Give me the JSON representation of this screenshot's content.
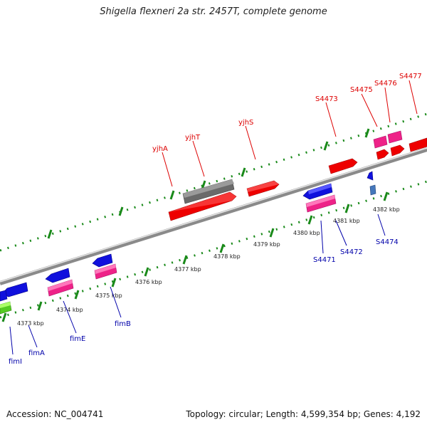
{
  "title": "Shigella flexneri 2a str. 2457T, complete genome",
  "accession_text": "Accession: NC_004741",
  "summary_text": "Topology: circular; Length: 4,599,354 bp; Genes: 4,192",
  "colors": {
    "forward_gene_label": "#dd0000",
    "reverse_gene_label": "#0000aa",
    "backbone": "#999999",
    "tick": "#1a8a1a"
  },
  "ticks": [
    {
      "label": "4373 kbp",
      "pos": 4373
    },
    {
      "label": "4374 kbp",
      "pos": 4374
    },
    {
      "label": "4375 kbp",
      "pos": 4375
    },
    {
      "label": "4376 kbp",
      "pos": 4376
    },
    {
      "label": "4377 kbp",
      "pos": 4377
    },
    {
      "label": "4378 kbp",
      "pos": 4378
    },
    {
      "label": "4379 kbp",
      "pos": 4379
    },
    {
      "label": "4380 kbp",
      "pos": 4380
    },
    {
      "label": "4381 kbp",
      "pos": 4381
    },
    {
      "label": "4382 kbp",
      "pos": 4382
    }
  ],
  "forward_labels": [
    "yjhA",
    "yjhT",
    "yjhS",
    "S4473",
    "S4475",
    "S4476",
    "S4477"
  ],
  "reverse_labels": [
    "fimI",
    "fimA",
    "fimE",
    "fimB",
    "S4471",
    "S4472",
    "S4474"
  ]
}
